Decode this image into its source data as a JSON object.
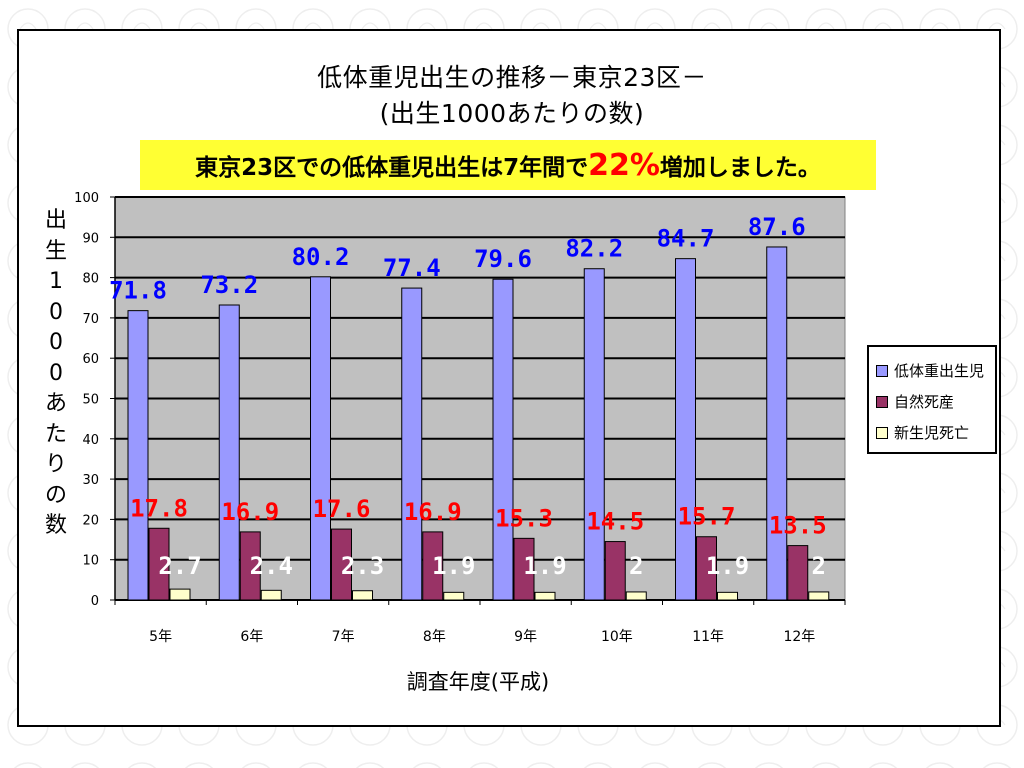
{
  "page": {
    "title_line1": "低体重児出生の推移－東京23区－",
    "title_line2": "(出生1000あたりの数)",
    "banner_prefix": "東京23区での低体重児出生は7年間で",
    "banner_highlight": "22%",
    "banner_suffix": "増加しました。",
    "colors": {
      "series1": "#9999ff",
      "series2": "#993366",
      "series3": "#ffffcc",
      "series1_label": "#0000ff",
      "series2_label": "#ff0000",
      "series3_label": "#ffffff",
      "plot_background": "#c0c0c0",
      "banner": "#ffff33"
    }
  },
  "chart_data": {
    "type": "bar",
    "title": "低体重児出生の推移－東京23区－",
    "subtitle": "(出生1000あたりの数)",
    "xlabel": "調査年度(平成)",
    "ylabel": "出生1000あたりの数",
    "ylabel_chars": [
      "出",
      "生",
      "1",
      "0",
      "0",
      "0",
      "あ",
      "た",
      "り",
      "の",
      "数"
    ],
    "categories": [
      "5年",
      "6年",
      "7年",
      "8年",
      "9年",
      "10年",
      "11年",
      "12年"
    ],
    "ylim": [
      0,
      100
    ],
    "yticks": [
      0,
      10,
      20,
      30,
      40,
      50,
      60,
      70,
      80,
      90,
      100
    ],
    "grid": true,
    "legend": "right",
    "series": [
      {
        "name": "低体重出生児",
        "values": [
          71.8,
          73.2,
          80.2,
          77.4,
          79.6,
          82.2,
          84.7,
          87.6
        ]
      },
      {
        "name": "自然死産",
        "values": [
          17.8,
          16.9,
          17.6,
          16.9,
          15.3,
          14.5,
          15.7,
          13.5
        ]
      },
      {
        "name": "新生児死亡",
        "values": [
          2.7,
          2.4,
          2.3,
          1.9,
          1.9,
          2,
          1.9,
          2
        ]
      }
    ]
  }
}
